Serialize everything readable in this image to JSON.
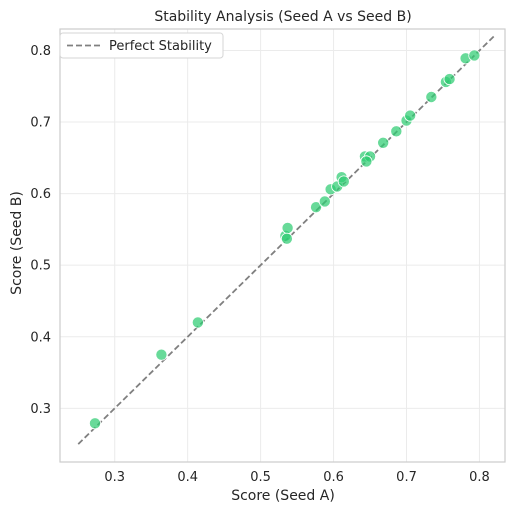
{
  "chart_data": {
    "type": "scatter",
    "title": "Stability Analysis (Seed A vs Seed B)",
    "xlabel": "Score (Seed A)",
    "ylabel": "Score (Seed B)",
    "xlim": [
      0.225,
      0.835
    ],
    "ylim": [
      0.225,
      0.83
    ],
    "xticks": [
      0.3,
      0.4,
      0.5,
      0.6,
      0.7,
      0.8
    ],
    "yticks": [
      0.3,
      0.4,
      0.5,
      0.6,
      0.7,
      0.8
    ],
    "grid": true,
    "legend": {
      "position": "top-left",
      "entries": [
        {
          "label": "Perfect Stability",
          "style": "dashed-line",
          "color": "#808080"
        }
      ]
    },
    "reference_line": {
      "label": "Perfect Stability",
      "x": [
        0.25,
        0.82
      ],
      "y": [
        0.25,
        0.82
      ],
      "color": "#808080"
    },
    "points_color": "#2ecc71",
    "points": [
      {
        "x": 0.273,
        "y": 0.279
      },
      {
        "x": 0.364,
        "y": 0.375
      },
      {
        "x": 0.414,
        "y": 0.42
      },
      {
        "x": 0.534,
        "y": 0.541
      },
      {
        "x": 0.537,
        "y": 0.552
      },
      {
        "x": 0.536,
        "y": 0.537
      },
      {
        "x": 0.576,
        "y": 0.581
      },
      {
        "x": 0.588,
        "y": 0.589
      },
      {
        "x": 0.596,
        "y": 0.606
      },
      {
        "x": 0.605,
        "y": 0.61
      },
      {
        "x": 0.611,
        "y": 0.623
      },
      {
        "x": 0.614,
        "y": 0.617
      },
      {
        "x": 0.643,
        "y": 0.652
      },
      {
        "x": 0.65,
        "y": 0.652
      },
      {
        "x": 0.645,
        "y": 0.645
      },
      {
        "x": 0.668,
        "y": 0.671
      },
      {
        "x": 0.686,
        "y": 0.687
      },
      {
        "x": 0.7,
        "y": 0.702
      },
      {
        "x": 0.705,
        "y": 0.709
      },
      {
        "x": 0.734,
        "y": 0.735
      },
      {
        "x": 0.754,
        "y": 0.756
      },
      {
        "x": 0.759,
        "y": 0.76
      },
      {
        "x": 0.781,
        "y": 0.789
      },
      {
        "x": 0.793,
        "y": 0.793
      }
    ]
  }
}
